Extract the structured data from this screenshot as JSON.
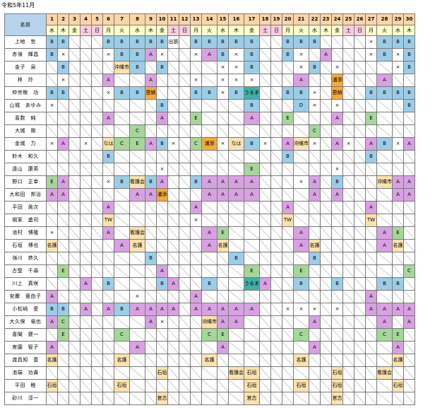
{
  "title": "令和5年11月",
  "name_header": "名前",
  "days": [
    {
      "n": "1",
      "w": "水"
    },
    {
      "n": "2",
      "w": "木"
    },
    {
      "n": "3",
      "w": "金"
    },
    {
      "n": "4",
      "w": "土"
    },
    {
      "n": "5",
      "w": "日"
    },
    {
      "n": "6",
      "w": "月"
    },
    {
      "n": "7",
      "w": "火"
    },
    {
      "n": "8",
      "w": "水"
    },
    {
      "n": "9",
      "w": "木"
    },
    {
      "n": "10",
      "w": "金"
    },
    {
      "n": "11",
      "w": "土"
    },
    {
      "n": "12",
      "w": "日"
    },
    {
      "n": "13",
      "w": "月"
    },
    {
      "n": "14",
      "w": "火"
    },
    {
      "n": "15",
      "w": "水"
    },
    {
      "n": "16",
      "w": "木"
    },
    {
      "n": "17",
      "w": "金"
    },
    {
      "n": "18",
      "w": "土"
    },
    {
      "n": "19",
      "w": "日"
    },
    {
      "n": "20",
      "w": "月"
    },
    {
      "n": "21",
      "w": "火"
    },
    {
      "n": "22",
      "w": "水"
    },
    {
      "n": "23",
      "w": "木"
    },
    {
      "n": "24",
      "w": "金"
    },
    {
      "n": "25",
      "w": "土"
    },
    {
      "n": "26",
      "w": "日"
    },
    {
      "n": "27",
      "w": "月"
    },
    {
      "n": "28",
      "w": "火"
    },
    {
      "n": "29",
      "w": "水"
    },
    {
      "n": "30",
      "w": "木"
    }
  ],
  "rows": [
    {
      "name": "上地　哲",
      "cells": [
        "B",
        "B",
        "/",
        "/",
        "/",
        "B",
        "B",
        "B",
        "B",
        "B",
        "出張",
        "/",
        "B",
        "B",
        "B",
        "B",
        "B",
        "/",
        "/",
        "B",
        "B",
        "B",
        "/",
        "/",
        "/",
        "/",
        "×",
        "B",
        "B",
        "B"
      ]
    },
    {
      "name": "赤嶺　輝昌",
      "cells": [
        "B",
        "×",
        "/",
        "/",
        "/",
        "×",
        "B",
        "B",
        "A",
        "×",
        "/",
        "/",
        "×",
        "A",
        "B",
        "×",
        "B",
        "/",
        "/",
        "B",
        "×",
        "/",
        "A",
        "/",
        "/",
        "/",
        "×",
        "B",
        "×",
        "B"
      ]
    },
    {
      "name": "金子　泉",
      "cells": [
        "/",
        "B",
        "/",
        "/",
        "/",
        "/",
        "沖縄市",
        "B",
        "/",
        "B",
        "/",
        "/",
        "/",
        "/",
        "×",
        "×",
        "B",
        "/",
        "/",
        "/",
        "×",
        "B",
        "/",
        "×",
        "/",
        "/",
        "/",
        "/",
        "×",
        "B"
      ]
    },
    {
      "name": "林　玲",
      "cells": [
        "/",
        "×",
        "/",
        "/",
        "/",
        "A",
        "/",
        "/",
        "A",
        "/",
        "/",
        "/",
        "×",
        "/",
        "×",
        "×",
        "×",
        "/",
        "/",
        "/",
        "A",
        "/",
        "/",
        "浦添",
        "/",
        "/",
        "/",
        "A",
        "/",
        "/"
      ]
    },
    {
      "name": "仲宗根　功",
      "cells": [
        "B",
        "B",
        "/",
        "/",
        "/",
        "×",
        "B",
        "B",
        "恩納",
        "/",
        "/",
        "/",
        "B",
        "B",
        "×",
        "B",
        "うるま",
        "/",
        "/",
        "B",
        "B",
        "×",
        "/",
        "恩納",
        "/",
        "/",
        "B",
        "B",
        "B",
        "B"
      ]
    },
    {
      "name": "山城　あゆみ",
      "cells": [
        "×",
        "/",
        "/",
        "/",
        "/",
        "/",
        "/",
        "/",
        "/",
        "B",
        "/",
        "/",
        "/",
        "/",
        "/",
        "/",
        "B",
        "/",
        "/",
        "/",
        "D",
        "×",
        "/",
        "×",
        "/",
        "/",
        "/",
        "/",
        "/",
        "B"
      ]
    },
    {
      "name": "喜数　純",
      "cells": [
        "/",
        "/",
        "/",
        "/",
        "/",
        "A",
        "/",
        "/",
        "/",
        "A",
        "/",
        "/",
        "E",
        "/",
        "/",
        "/",
        "A",
        "/",
        "/",
        "E",
        "/",
        "/",
        "/",
        "A",
        "/",
        "/",
        "E",
        "/",
        "/",
        "/"
      ]
    },
    {
      "name": "大城　剛",
      "cells": [
        "/",
        "/",
        "/",
        "/",
        "/",
        "/",
        "/",
        "C",
        "/",
        "/",
        "/",
        "/",
        "/",
        "/",
        "/",
        "/",
        "/",
        "/",
        "/",
        "/",
        "/",
        "C",
        "/",
        "/",
        "/",
        "/",
        "/",
        "/",
        "/",
        "/"
      ]
    },
    {
      "name": "金城　力",
      "cells": [
        "×",
        "A",
        "/",
        "×",
        "/",
        "なは",
        "C",
        "E",
        "A",
        "B",
        "×",
        "/",
        "C",
        "浦添",
        "×",
        "なは",
        "B",
        "×",
        "/",
        "A",
        "沖縄市",
        "×",
        "/",
        "A",
        "×",
        "/",
        "A",
        "B",
        "×",
        "A"
      ]
    },
    {
      "name": "鈴木　和久",
      "cells": [
        "/",
        "/",
        "/",
        "/",
        "/",
        "B",
        "/",
        "/",
        "/",
        "/",
        "/",
        "/",
        "/",
        "/",
        "/",
        "/",
        "/",
        "/",
        "/",
        "B",
        "/",
        "/",
        "/",
        "/",
        "/",
        "/",
        "B",
        "/",
        "/",
        "/"
      ]
    },
    {
      "name": "遠山　康英",
      "cells": [
        "/",
        "/",
        "/",
        "/",
        "/",
        "/",
        "/",
        "/",
        "/",
        "×",
        "/",
        "/",
        "/",
        "/",
        "/",
        "/",
        "E",
        "/",
        "/",
        "/",
        "/",
        "/",
        "/",
        "×",
        "/",
        "/",
        "/",
        "/",
        "/",
        "/"
      ]
    },
    {
      "name": "野口　正幸",
      "cells": [
        "E",
        "A",
        "/",
        "/",
        "/",
        "×",
        "B",
        "看護会",
        "B",
        "A",
        "/",
        "/",
        "B",
        "A",
        "A",
        "A",
        "A",
        "/",
        "/",
        "/",
        "×",
        "A",
        "/",
        "B",
        "/",
        "/",
        "/",
        "沖縄市",
        "A",
        "A"
      ]
    },
    {
      "name": "大和田　邦治",
      "cells": [
        "A",
        "A",
        "/",
        "/",
        "/",
        "/",
        "/",
        "A",
        "A",
        "浦添",
        "/",
        "/",
        "/",
        "A",
        "A",
        "A",
        "A",
        "/",
        "/",
        "/",
        "/",
        "A",
        "/",
        "A",
        "/",
        "/",
        "/",
        "/",
        "A",
        "A"
      ]
    },
    {
      "name": "平田　眞次",
      "cells": [
        "/",
        "/",
        "/",
        "/",
        "/",
        "A",
        "/",
        "/",
        "/",
        "/",
        "/",
        "/",
        "A",
        "/",
        "/",
        "/",
        "/",
        "/",
        "/",
        "A",
        "/",
        "/",
        "/",
        "/",
        "/",
        "/",
        "A",
        "/",
        "/",
        "/"
      ]
    },
    {
      "name": "堀家　盛司",
      "cells": [
        "/",
        "/",
        "/",
        "/",
        "/",
        "TW",
        "/",
        "/",
        "/",
        "/",
        "/",
        "/",
        "×",
        "/",
        "/",
        "/",
        "/",
        "/",
        "/",
        "TW",
        "/",
        "/",
        "/",
        "/",
        "/",
        "/",
        "TW",
        "/",
        "/",
        "/"
      ]
    },
    {
      "name": "池村　博隆",
      "cells": [
        "×",
        "/",
        "/",
        "/",
        "/",
        "A",
        "/",
        "看護会",
        "/",
        "/",
        "/",
        "/",
        "/",
        "A",
        "E",
        "/",
        "/",
        "/",
        "/",
        "/",
        "A",
        "/",
        "/",
        "/",
        "/",
        "/",
        "/",
        "A",
        "E",
        "/"
      ]
    },
    {
      "name": "石垣　博也",
      "cells": [
        "名護",
        "/",
        "/",
        "/",
        "/",
        "/",
        "A",
        "名護",
        "/",
        "/",
        "/",
        "/",
        "/",
        "A",
        "名護",
        "/",
        "/",
        "/",
        "/",
        "/",
        "A",
        "名護",
        "/",
        "/",
        "/",
        "/",
        "/",
        "A",
        "名護",
        "/"
      ]
    },
    {
      "name": "嶺川　恭久",
      "cells": [
        "/",
        "/",
        "/",
        "/",
        "/",
        "/",
        "/",
        "/",
        "B",
        "/",
        "/",
        "/",
        "/",
        "/",
        "/",
        "B",
        "/",
        "/",
        "/",
        "/",
        "/",
        "B",
        "/",
        "/",
        "/",
        "/",
        "/",
        "/",
        "/",
        "/"
      ]
    },
    {
      "name": "古堅　千尋",
      "cells": [
        "/",
        "E",
        "/",
        "/",
        "/",
        "/",
        "/",
        "/",
        "/",
        "A",
        "/",
        "/",
        "/",
        "/",
        "/",
        "/",
        "E",
        "/",
        "/",
        "/",
        "E",
        "/",
        "/",
        "/",
        "/",
        "/",
        "/",
        "/",
        "/",
        "C"
      ]
    },
    {
      "name": "川上　真咲",
      "cells": [
        "/",
        "/",
        "/",
        "A",
        "/",
        "B",
        "/",
        "/",
        "/",
        "B",
        "A",
        "/",
        "/",
        "B",
        "/",
        "/",
        "うるま",
        "A",
        "/",
        "/",
        "B",
        "/",
        "/",
        "B",
        "/",
        "/",
        "/",
        "B",
        "B",
        "/"
      ]
    },
    {
      "name": "安慶　亜由子",
      "cells": [
        "A",
        "/",
        "/",
        "/",
        "/",
        "/",
        "/",
        "×",
        "/",
        "/",
        "/",
        "/",
        "A",
        "/",
        "/",
        "/",
        "/",
        "/",
        "/",
        "/",
        "/",
        "/",
        "/",
        "/",
        "/",
        "/",
        "A",
        "/",
        "/",
        "/"
      ]
    },
    {
      "name": "小松崎　愛",
      "cells": [
        "B",
        "B",
        "/",
        "A",
        "/",
        "A",
        "B",
        "A",
        "A",
        "A",
        "A",
        "/",
        "A",
        "A",
        "A",
        "A",
        "A",
        "/",
        "/",
        "×",
        "×",
        "×",
        "/",
        "×",
        "/",
        "/",
        "A",
        "A",
        "A",
        "A"
      ]
    },
    {
      "name": "大久保　竜也",
      "cells": [
        "A",
        "C",
        "/",
        "/",
        "/",
        "/",
        "/",
        "/",
        "A",
        "×",
        "/",
        "/",
        "/",
        "沖縄市",
        "A",
        "A",
        "/",
        "/",
        "/",
        "/",
        "/",
        "A",
        "/",
        "/",
        "/",
        "/",
        "/",
        "A",
        "/",
        "A"
      ]
    },
    {
      "name": "喜聞　健一",
      "cells": [
        "/",
        "E",
        "/",
        "/",
        "/",
        "/",
        "C",
        "/",
        "/",
        "/",
        "/",
        "/",
        "/",
        "C",
        "E",
        "/",
        "/",
        "/",
        "/",
        "/",
        "C",
        "/",
        "/",
        "/",
        "/",
        "/",
        "/",
        "C",
        "E",
        "/"
      ]
    },
    {
      "name": "宮園　智子",
      "cells": [
        "A",
        "/",
        "/",
        "/",
        "/",
        "/",
        "/",
        "A",
        "/",
        "/",
        "/",
        "/",
        "/",
        "/",
        "A",
        "/",
        "/",
        "/",
        "/",
        "/",
        "/",
        "A",
        "/",
        "/",
        "/",
        "/",
        "/",
        "/",
        "A",
        "/"
      ]
    },
    {
      "name": "渡具知　豊",
      "cells": [
        "名護",
        "/",
        "/",
        "/",
        "/",
        "/",
        "名護",
        "/",
        "/",
        "/",
        "/",
        "/",
        "/",
        "名護",
        "/",
        "/",
        "/",
        "/",
        "/",
        "/",
        "名護",
        "/",
        "/",
        "/",
        "/",
        "/",
        "/",
        "/",
        "名護",
        "/"
      ]
    },
    {
      "name": "池端　功貴",
      "cells": [
        "/",
        "/",
        "/",
        "/",
        "/",
        "/",
        "/",
        "/",
        "/",
        "石垣",
        "/",
        "/",
        "/",
        "/",
        "/",
        "看護会",
        "石垣",
        "/",
        "/",
        "/",
        "/",
        "/",
        "/",
        "石垣",
        "/",
        "/",
        "/",
        "看護会",
        "/",
        "/"
      ]
    },
    {
      "name": "平田　睦",
      "cells": [
        "石垣",
        "/",
        "/",
        "/",
        "/",
        "/",
        "石垣",
        "/",
        "/",
        "/",
        "/",
        "/",
        "/",
        "/",
        "/",
        "/",
        "石垣",
        "/",
        "/",
        "/",
        "石垣",
        "/",
        "/",
        "石垣",
        "/",
        "/",
        "/",
        "/",
        "石垣",
        "/"
      ]
    },
    {
      "name": "砂川　淳一",
      "cells": [
        "/",
        "/",
        "/",
        "/",
        "/",
        "/",
        "/",
        "/",
        "/",
        "宮古",
        "/",
        "/",
        "/",
        "/",
        "/",
        "/",
        "宮古",
        "/",
        "/",
        "/",
        "/",
        "/",
        "/",
        "宮古",
        "/",
        "/",
        "/",
        "/",
        "/",
        "/"
      ]
    }
  ],
  "colors": {
    "B": "#9ccde8",
    "A": "#d8a1e2",
    "C": "#a6d69a",
    "E": "#a6d69a",
    "place_orange": "#f5a93c",
    "place_teal": "#3fb0a6",
    "place_beige": "#fbe2ad",
    "header_num": "#fcd5a8",
    "weekday": "#ffffcc",
    "weekend": "#f8cee0",
    "name_header": "#b7d3ee"
  }
}
